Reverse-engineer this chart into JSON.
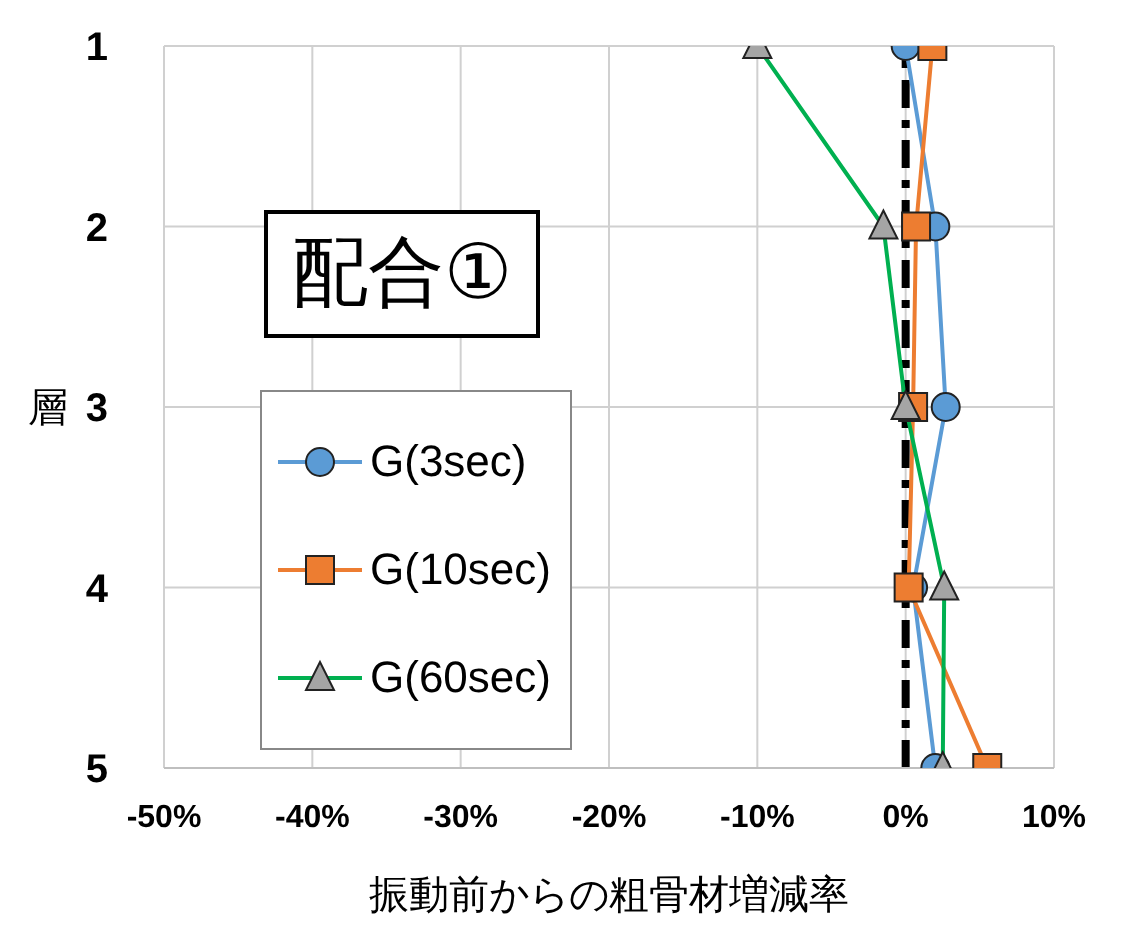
{
  "chart_data": {
    "type": "line",
    "orientation": "horizontal",
    "xlabel": "振動前からの粗骨材増減率",
    "ylabel": "層",
    "categories": [
      "1",
      "2",
      "3",
      "4",
      "5"
    ],
    "series": [
      {
        "name": "G(3sec)",
        "color": "#5b9bd5",
        "marker": "circle",
        "values": [
          0,
          2,
          2.7,
          0.5,
          2
        ]
      },
      {
        "name": "G(10sec)",
        "color": "#ed7d31",
        "marker": "square",
        "values": [
          1.8,
          0.7,
          0.5,
          0.2,
          5.5
        ]
      },
      {
        "name": "G(60sec)",
        "color": "#00b050",
        "marker": "triangle",
        "values": [
          -10,
          -1.5,
          0,
          2.6,
          2.5
        ]
      }
    ],
    "xlim": [
      -50,
      10
    ],
    "xticks": [
      {
        "value": -50,
        "label": "-50%"
      },
      {
        "value": -40,
        "label": "-40%"
      },
      {
        "value": -30,
        "label": "-30%"
      },
      {
        "value": -20,
        "label": "-20%"
      },
      {
        "value": -10,
        "label": "-10%"
      },
      {
        "value": 0,
        "label": "0%"
      },
      {
        "value": 10,
        "label": "10%"
      }
    ],
    "grid": true,
    "legend": "left",
    "ref_lines": [
      {
        "axis": "x",
        "value": 0,
        "color": "#000000",
        "line_style": "dashed"
      }
    ],
    "annotations": [
      "配合①"
    ]
  }
}
